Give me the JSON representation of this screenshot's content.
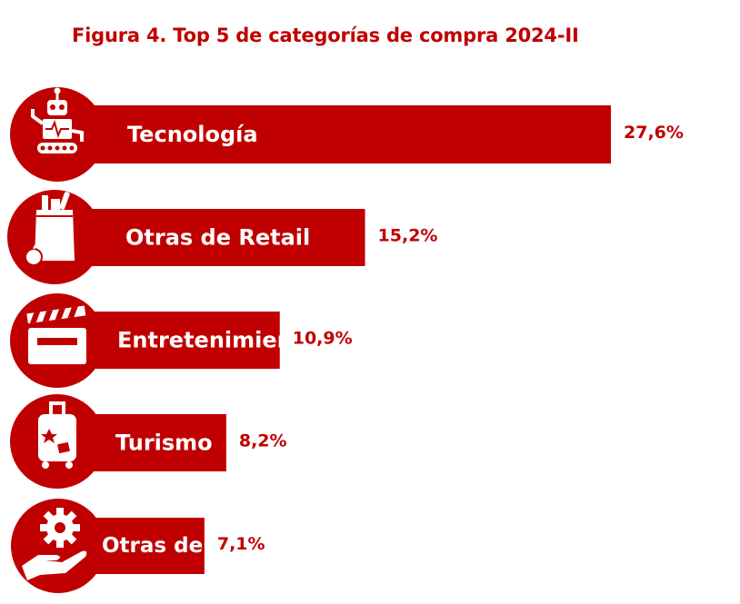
{
  "title": "Figura 4. Top 5 de categorías de compra 2024-II",
  "colors": {
    "accent": "#C00000",
    "label_text": "#FFFFFF"
  },
  "chart_data": {
    "type": "bar",
    "orientation": "horizontal",
    "title": "Figura 4. Top 5 de categorías de compra 2024-II",
    "categories": [
      "Tecnología",
      "Otras de Retail",
      "Entretenimiento",
      "Turismo",
      "Otras de Serv."
    ],
    "values": [
      27.6,
      15.2,
      10.9,
      8.2,
      7.1
    ],
    "value_labels": [
      "27,6%",
      "15,2%",
      "10,9%",
      "8,2%",
      "7,1%"
    ],
    "unit": "%",
    "icons": [
      "robot-icon",
      "grocery-bag-icon",
      "clapperboard-icon",
      "suitcase-icon",
      "gear-hand-icon"
    ],
    "xlabel": "",
    "ylabel": "",
    "grid": false,
    "legend": "none"
  }
}
